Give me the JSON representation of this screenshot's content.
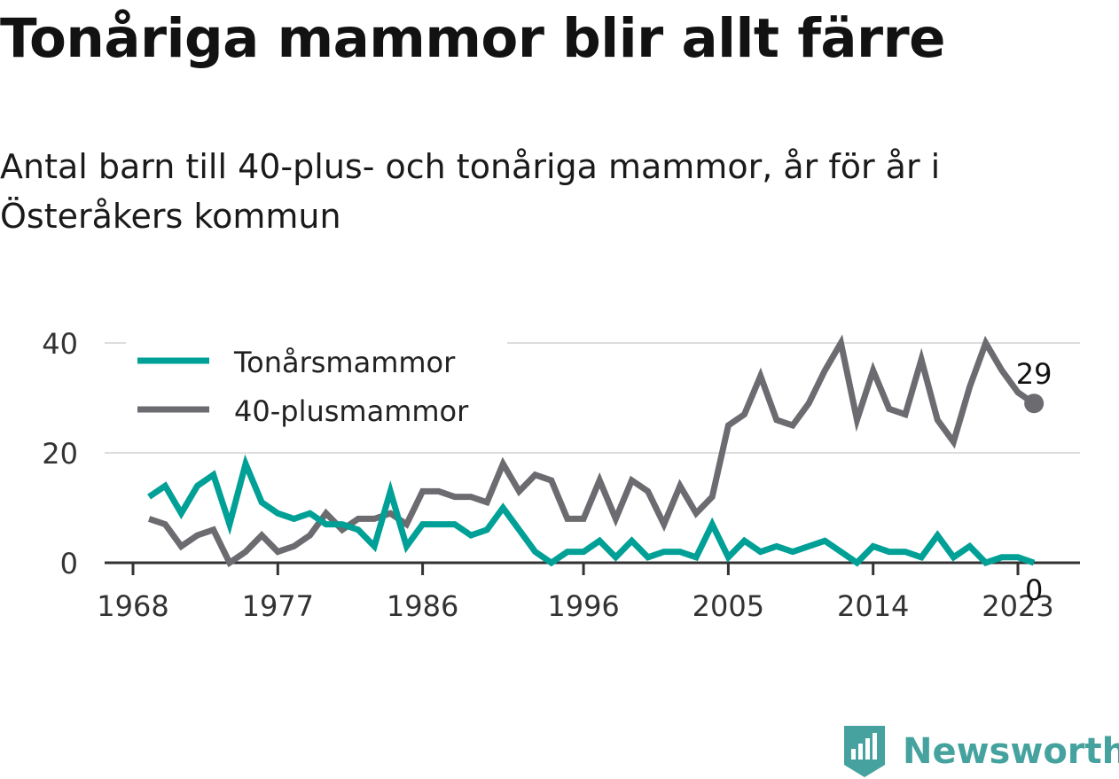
{
  "title": "Tonåriga mammor blir allt färre",
  "subtitle": "Antal barn till 40-plus- och tonåriga mammor, år för år i Österåkers kommun",
  "brand": "Newsworthy",
  "chart_data": {
    "type": "line",
    "x": [
      1969,
      1970,
      1971,
      1972,
      1973,
      1974,
      1975,
      1976,
      1977,
      1978,
      1979,
      1980,
      1981,
      1982,
      1983,
      1984,
      1985,
      1986,
      1987,
      1988,
      1989,
      1990,
      1991,
      1992,
      1993,
      1994,
      1995,
      1996,
      1997,
      1998,
      1999,
      2000,
      2001,
      2002,
      2003,
      2004,
      2005,
      2006,
      2007,
      2008,
      2009,
      2010,
      2011,
      2012,
      2013,
      2014,
      2015,
      2016,
      2017,
      2018,
      2019,
      2020,
      2021,
      2022,
      2023,
      2024
    ],
    "series": [
      {
        "name": "Tonårsmammor",
        "color": "#00a096",
        "values": [
          12,
          14,
          9,
          14,
          16,
          7,
          18,
          11,
          9,
          8,
          9,
          7,
          7,
          6,
          3,
          13,
          3,
          7,
          7,
          7,
          5,
          6,
          10,
          6,
          2,
          0,
          2,
          2,
          4,
          1,
          4,
          1,
          2,
          2,
          1,
          7,
          1,
          4,
          2,
          3,
          2,
          3,
          4,
          2,
          0,
          3,
          2,
          2,
          1,
          5,
          1,
          3,
          0,
          1,
          1,
          0
        ]
      },
      {
        "name": "40-plusmammor",
        "color": "#6b6b70",
        "values": [
          8,
          7,
          3,
          5,
          6,
          0,
          2,
          5,
          2,
          3,
          5,
          9,
          6,
          8,
          8,
          9,
          7,
          13,
          13,
          12,
          12,
          11,
          18,
          13,
          16,
          15,
          8,
          8,
          15,
          8,
          15,
          13,
          7,
          14,
          9,
          12,
          25,
          27,
          34,
          26,
          25,
          29,
          35,
          40,
          26,
          35,
          28,
          27,
          37,
          26,
          22,
          32,
          40,
          35,
          31,
          29
        ]
      }
    ],
    "x_ticks": [
      "1968",
      "1977",
      "1986",
      "1996",
      "2005",
      "2014",
      "2023"
    ],
    "y_ticks": [
      "0",
      "20",
      "40"
    ],
    "ylim": [
      0,
      40
    ],
    "end_labels": [
      "29",
      "0"
    ],
    "legend_position": "top-left",
    "grid": "horizontal"
  }
}
